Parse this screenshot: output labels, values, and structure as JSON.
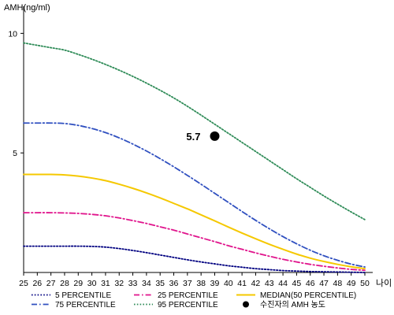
{
  "chart_data": {
    "type": "line",
    "ylabel": "AMH(ng/ml)",
    "xlabel": "나이",
    "xlim": [
      25,
      50
    ],
    "ylim": [
      0,
      11
    ],
    "x": [
      25,
      26,
      27,
      28,
      29,
      30,
      31,
      32,
      33,
      34,
      35,
      36,
      37,
      38,
      39,
      40,
      41,
      42,
      43,
      44,
      45,
      46,
      47,
      48,
      49,
      50
    ],
    "x_ticks": [
      "25",
      "26",
      "27",
      "28",
      "29",
      "30",
      "31",
      "32",
      "33",
      "34",
      "35",
      "36",
      "37",
      "38",
      "39",
      "40",
      "41",
      "42",
      "43",
      "44",
      "45",
      "46",
      "47",
      "48",
      "49",
      "50"
    ],
    "y_ticks": [
      "5",
      "10"
    ],
    "y_tick_values": [
      5,
      10
    ],
    "grid": false,
    "legend_position": "bottom",
    "series": [
      {
        "name": "5 PERCENTILE",
        "color": "#000080",
        "dash": "dot",
        "values": [
          1.1,
          1.1,
          1.1,
          1.1,
          1.1,
          1.09,
          1.06,
          1.0,
          0.92,
          0.83,
          0.73,
          0.63,
          0.53,
          0.44,
          0.36,
          0.28,
          0.22,
          0.16,
          0.12,
          0.08,
          0.06,
          0.04,
          0.03,
          0.02,
          0.01,
          0.0
        ]
      },
      {
        "name": "25 PERCENTILE",
        "color": "#e0148c",
        "dash": "dashdot",
        "values": [
          2.5,
          2.5,
          2.5,
          2.49,
          2.47,
          2.43,
          2.37,
          2.28,
          2.17,
          2.05,
          1.91,
          1.77,
          1.61,
          1.45,
          1.29,
          1.12,
          0.97,
          0.82,
          0.68,
          0.55,
          0.44,
          0.34,
          0.26,
          0.19,
          0.13,
          0.09
        ]
      },
      {
        "name": "MEDIAN(50 PERCENTILE)",
        "color": "#f5c800",
        "dash": "solid",
        "values": [
          4.1,
          4.1,
          4.1,
          4.08,
          4.03,
          3.95,
          3.84,
          3.69,
          3.52,
          3.33,
          3.12,
          2.89,
          2.66,
          2.41,
          2.16,
          1.9,
          1.65,
          1.41,
          1.18,
          0.97,
          0.77,
          0.6,
          0.46,
          0.34,
          0.24,
          0.16
        ]
      },
      {
        "name": "75 PERCENTILE",
        "color": "#3050c0",
        "dash": "dashdot",
        "values": [
          6.25,
          6.25,
          6.25,
          6.23,
          6.15,
          6.02,
          5.85,
          5.63,
          5.37,
          5.08,
          4.76,
          4.42,
          4.06,
          3.69,
          3.31,
          2.93,
          2.55,
          2.18,
          1.83,
          1.5,
          1.2,
          0.93,
          0.7,
          0.51,
          0.35,
          0.23
        ]
      },
      {
        "name": "95 PERCENTILE",
        "color": "#2e8b57",
        "dash": "dot",
        "values": [
          9.6,
          9.5,
          9.4,
          9.3,
          9.12,
          8.92,
          8.7,
          8.46,
          8.2,
          7.92,
          7.62,
          7.3,
          6.95,
          6.58,
          6.2,
          5.82,
          5.44,
          5.06,
          4.68,
          4.3,
          3.92,
          3.56,
          3.2,
          2.86,
          2.53,
          2.21
        ]
      }
    ],
    "marker": {
      "name": "수진자의 AMH 농도",
      "x": 39,
      "y": 5.7,
      "label": "5.7",
      "color": "#000000"
    },
    "legend_order": [
      "5 PERCENTILE",
      "25 PERCENTILE",
      "MEDIAN(50 PERCENTILE)",
      "75 PERCENTILE",
      "95 PERCENTILE",
      "수진자의 AMH 농도"
    ]
  }
}
